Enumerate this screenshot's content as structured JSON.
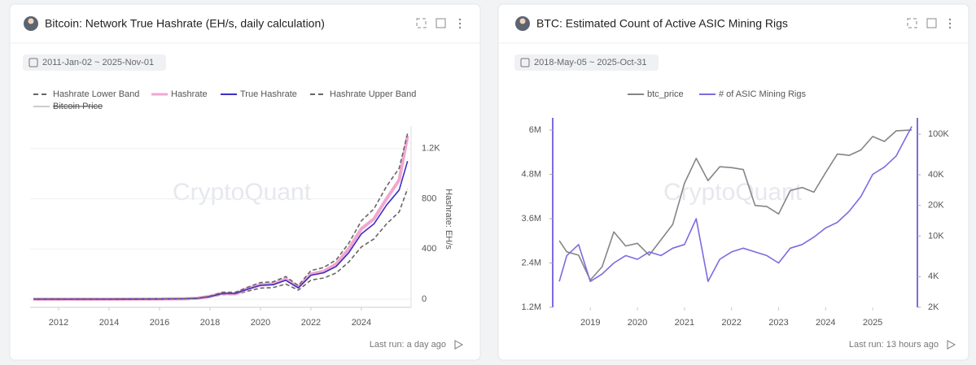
{
  "chart_data": [
    {
      "type": "line",
      "title": "Bitcoin: Network True Hashrate (EH/s, daily calculation)",
      "date_range": "2011-Jan-02 ~ 2025-Nov-01",
      "watermark": "CryptoQuant",
      "footer": "Last run: a day ago",
      "y_label": "Hashrate: EH/s",
      "x": [
        2011,
        2012,
        2013,
        2014,
        2015,
        2016,
        2017,
        2017.5,
        2018,
        2018.5,
        2019,
        2019.5,
        2020,
        2020.5,
        2021,
        2021.5,
        2022,
        2022.5,
        2023,
        2023.5,
        2024,
        2024.5,
        2025,
        2025.5,
        2025.83
      ],
      "xlim": [
        2010.87,
        2025.97
      ],
      "xticks": [
        2012,
        2014,
        2016,
        2018,
        2020,
        2022,
        2024
      ],
      "ylim": [
        -65,
        1380
      ],
      "yticks": [
        0,
        400,
        800,
        {
          "value": 1200,
          "label": "1.2K"
        }
      ],
      "grid": true,
      "series": [
        {
          "name": "Hashrate Lower Band",
          "color": "#666666",
          "style": "dashed",
          "values": [
            0,
            0,
            0,
            0,
            0.2,
            0.8,
            2.4,
            5,
            16,
            36,
            36,
            64,
            88,
            92,
            120,
            72,
            152,
            168,
            208,
            296,
            416,
            480,
            600,
            696,
            880
          ]
        },
        {
          "name": "Hashrate",
          "color": "#f2a7d0",
          "style": "thick",
          "values": [
            0,
            0,
            0,
            0,
            0.3,
            1,
            3,
            7,
            22,
            48,
            42,
            85,
            115,
            120,
            160,
            95,
            200,
            220,
            280,
            400,
            560,
            640,
            800,
            950,
            1300
          ]
        },
        {
          "name": "True Hashrate",
          "color": "#3a2fc4",
          "style": "solid",
          "values": [
            0,
            0,
            0,
            0,
            0.3,
            1,
            3,
            6,
            20,
            45,
            45,
            80,
            110,
            115,
            150,
            90,
            190,
            210,
            260,
            370,
            520,
            600,
            750,
            870,
            1100
          ]
        },
        {
          "name": "Hashrate Upper Band",
          "color": "#666666",
          "style": "dashed",
          "values": [
            0,
            0,
            0,
            0,
            0.4,
            1.2,
            3.6,
            7,
            24,
            54,
            54,
            96,
            132,
            138,
            180,
            108,
            228,
            252,
            312,
            444,
            624,
            720,
            900,
            1044,
            1320
          ]
        },
        {
          "name": "Bitcoin Price",
          "color": "#cccccc",
          "hidden": true
        }
      ]
    },
    {
      "type": "line",
      "title": "BTC: Estimated Count of Active ASIC Mining Rigs",
      "date_range": "2018-May-05 ~ 2025-Oct-31",
      "watermark": "CryptoQuant",
      "footer": "Last run: 13 hours ago",
      "x": [
        2018.34,
        2018.5,
        2018.75,
        2019,
        2019.25,
        2019.5,
        2019.75,
        2020,
        2020.25,
        2020.5,
        2020.75,
        2021,
        2021.25,
        2021.5,
        2021.75,
        2022,
        2022.25,
        2022.5,
        2022.75,
        2023,
        2023.25,
        2023.5,
        2023.75,
        2024,
        2024.25,
        2024.5,
        2024.75,
        2025,
        2025.25,
        2025.5,
        2025.83
      ],
      "xlim": [
        2018.2,
        2025.95
      ],
      "xticks": [
        2019,
        2020,
        2021,
        2022,
        2023,
        2024,
        2025
      ],
      "ylim": [
        1200000,
        6220000
      ],
      "yticks": [
        {
          "value": 1200000,
          "label": "1.2M"
        },
        {
          "value": 2400000,
          "label": "2.4M"
        },
        {
          "value": 3600000,
          "label": "3.6M"
        },
        {
          "value": 4800000,
          "label": "4.8M"
        },
        {
          "value": 6000000,
          "label": "6M"
        }
      ],
      "y2lim": [
        2000,
        132000
      ],
      "y2log": true,
      "y2ticks": [
        {
          "value": 2000,
          "label": "2K"
        },
        {
          "value": 4000,
          "label": "4K"
        },
        {
          "value": 10000,
          "label": "10K"
        },
        {
          "value": 20000,
          "label": "20K"
        },
        {
          "value": 40000,
          "label": "40K"
        },
        {
          "value": 100000,
          "label": "100K"
        }
      ],
      "grid": false,
      "series": [
        {
          "name": "btc_price",
          "color": "#858585",
          "style": "solid",
          "axis": "y2",
          "values": [
            9000,
            7000,
            6500,
            3700,
            5000,
            11000,
            8000,
            8500,
            6500,
            9200,
            13000,
            33000,
            58000,
            35000,
            48000,
            47000,
            45000,
            20000,
            19500,
            16500,
            28000,
            30000,
            27000,
            42000,
            64000,
            62000,
            70000,
            95000,
            85000,
            108000,
            110000
          ]
        },
        {
          "name": "# of ASIC Mining Rigs",
          "color": "#7b6cdf",
          "style": "solid",
          "values": [
            1900000,
            2600000,
            2900000,
            1900000,
            2100000,
            2400000,
            2600000,
            2500000,
            2700000,
            2600000,
            2800000,
            2900000,
            3600000,
            1900000,
            2500000,
            2700000,
            2800000,
            2700000,
            2600000,
            2400000,
            2800000,
            2900000,
            3100000,
            3350000,
            3500000,
            3800000,
            4200000,
            4800000,
            5000000,
            5300000,
            6100000
          ]
        }
      ]
    }
  ]
}
